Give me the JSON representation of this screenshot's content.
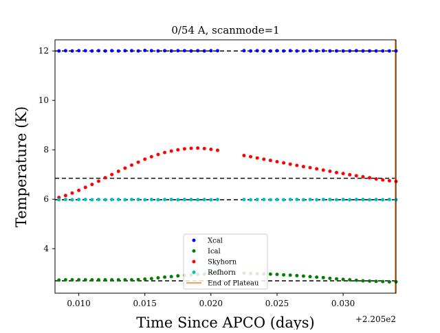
{
  "chart_data": {
    "type": "scatter",
    "title": "0/54 A, scanmode=1",
    "xlabel": "Time Since APCO (days)",
    "ylabel": "Temperature (K)",
    "x_offset_label": "+2.205e2",
    "xlim": [
      0.0082,
      0.034
    ],
    "ylim": [
      2.2,
      12.45
    ],
    "x_ticks": [
      0.01,
      0.015,
      0.02,
      0.025,
      0.03
    ],
    "x_tick_labels": [
      "0.010",
      "0.015",
      "0.020",
      "0.025",
      "0.030"
    ],
    "y_ticks": [
      4,
      6,
      8,
      10,
      12
    ],
    "y_tick_labels": [
      "4",
      "6",
      "8",
      "10",
      "12"
    ],
    "grid": false,
    "legend_position": "lower center",
    "x": [
      0.0085,
      0.009,
      0.0095,
      0.01,
      0.0105,
      0.011,
      0.0115,
      0.012,
      0.0125,
      0.013,
      0.0135,
      0.014,
      0.0145,
      0.015,
      0.0155,
      0.016,
      0.0165,
      0.017,
      0.0175,
      0.018,
      0.0185,
      0.019,
      0.0195,
      0.02,
      0.0205,
      0.0225,
      0.023,
      0.0235,
      0.024,
      0.0245,
      0.025,
      0.0255,
      0.026,
      0.0265,
      0.027,
      0.0275,
      0.028,
      0.0285,
      0.029,
      0.0295,
      0.03,
      0.0305,
      0.031,
      0.0315,
      0.032,
      0.0325,
      0.033,
      0.0335,
      0.034
    ],
    "series": [
      {
        "name": "Xcal",
        "color": "#0000ff",
        "values": [
          12.0,
          12.01,
          12.0,
          12.01,
          12.01,
          12.0,
          12.01,
          12.0,
          12.01,
          12.0,
          12.01,
          12.01,
          12.0,
          12.02,
          12.01,
          12.0,
          12.01,
          12.0,
          12.01,
          12.01,
          12.0,
          12.01,
          12.0,
          12.01,
          12.01,
          12.01,
          12.0,
          12.01,
          12.0,
          12.0,
          12.01,
          12.0,
          12.01,
          12.0,
          12.0,
          12.01,
          12.0,
          12.01,
          12.0,
          12.0,
          12.0,
          12.0,
          12.01,
          12.0,
          12.0,
          12.0,
          12.0,
          12.0,
          12.0
        ]
      },
      {
        "name": "Ical",
        "color": "#008000",
        "values": [
          2.73,
          2.74,
          2.74,
          2.74,
          2.74,
          2.74,
          2.74,
          2.74,
          2.74,
          2.74,
          2.74,
          2.74,
          2.75,
          2.77,
          2.79,
          2.82,
          2.85,
          2.87,
          2.9,
          2.92,
          2.94,
          2.96,
          2.97,
          2.98,
          2.99,
          3.01,
          3.0,
          2.99,
          2.98,
          2.97,
          2.96,
          2.94,
          2.93,
          2.91,
          2.89,
          2.87,
          2.85,
          2.83,
          2.8,
          2.78,
          2.76,
          2.74,
          2.72,
          2.7,
          2.69,
          2.68,
          2.67,
          2.66,
          2.66
        ]
      },
      {
        "name": "Skyhorn",
        "color": "#ff0000",
        "values": [
          6.07,
          6.15,
          6.25,
          6.36,
          6.48,
          6.6,
          6.73,
          6.87,
          7.0,
          7.13,
          7.26,
          7.38,
          7.5,
          7.62,
          7.72,
          7.81,
          7.89,
          7.95,
          8.0,
          8.04,
          8.06,
          8.07,
          8.05,
          8.02,
          7.98,
          7.77,
          7.72,
          7.67,
          7.62,
          7.57,
          7.52,
          7.47,
          7.42,
          7.37,
          7.32,
          7.28,
          7.23,
          7.18,
          7.13,
          7.08,
          7.04,
          6.99,
          6.95,
          6.91,
          6.87,
          6.82,
          6.78,
          6.75,
          6.72
        ]
      },
      {
        "name": "Refhorn",
        "color": "#00bfbf",
        "values": [
          5.98,
          5.99,
          5.98,
          5.99,
          5.99,
          5.98,
          5.99,
          5.98,
          5.99,
          5.99,
          5.98,
          5.99,
          5.99,
          5.98,
          5.99,
          5.98,
          5.99,
          5.99,
          5.98,
          5.99,
          5.99,
          5.98,
          5.99,
          5.98,
          5.99,
          5.99,
          5.98,
          5.99,
          5.99,
          5.98,
          5.99,
          5.98,
          5.99,
          5.99,
          5.98,
          5.99,
          5.98,
          5.99,
          5.99,
          5.98,
          5.99,
          5.98,
          5.99,
          5.99,
          5.98,
          5.99,
          5.98,
          5.99,
          5.98
        ]
      }
    ],
    "reference_lines": [
      12.0,
      6.85,
      5.98,
      2.7
    ],
    "reference_line_color": "#000000",
    "end_of_plateau": {
      "name": "End of Plateau",
      "color": "#ff7f0e",
      "x": 0.034
    }
  }
}
